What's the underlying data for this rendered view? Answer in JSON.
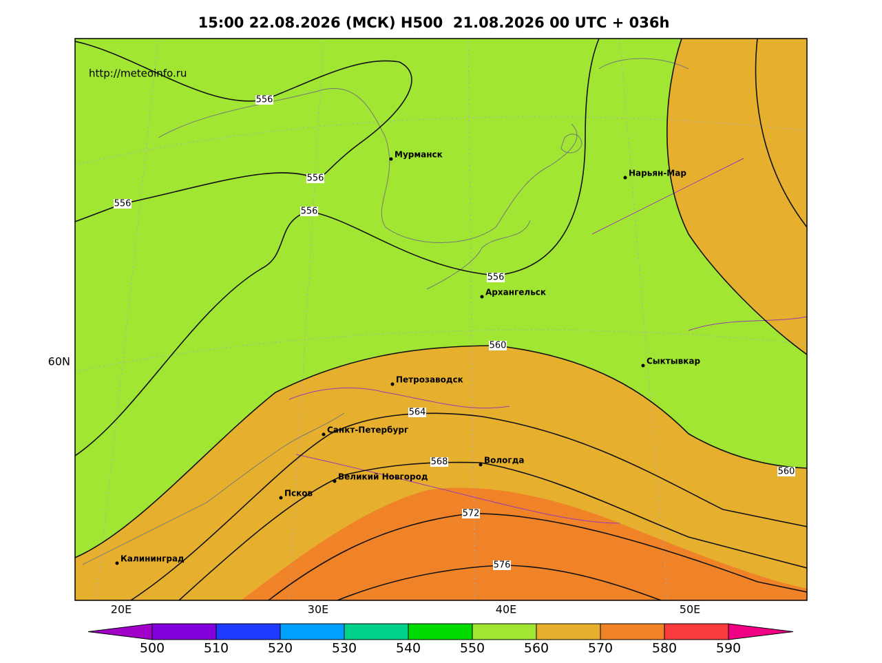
{
  "header": {
    "title": "15:00 22.08.2026 (МСК) H500  21.08.2026 00 UTC + 036h"
  },
  "map": {
    "source": "http://meteoinfo.ru",
    "cities": [
      "Мурманск",
      "Нарьян-Мар",
      "Архангельск",
      "Сыктывкар",
      "Петрозаводск",
      "Санкт-Петербург",
      "Вологда",
      "Великий Новгород",
      "Псков",
      "Калининград"
    ],
    "contour_labels": [
      556,
      556,
      556,
      556,
      556,
      560,
      560,
      564,
      568,
      572,
      576
    ],
    "lon_labels": [
      "20E",
      "30E",
      "40E",
      "50E"
    ],
    "lat_labels": [
      "60N"
    ]
  },
  "colorbar": {
    "ticks": [
      500,
      510,
      520,
      530,
      540,
      550,
      560,
      570,
      580,
      590
    ],
    "colors": [
      "#a000c8",
      "#8200dc",
      "#1e3cff",
      "#00a0ff",
      "#00d28c",
      "#00dc00",
      "#a0e632",
      "#e6af2d",
      "#f08228",
      "#fa3c3c",
      "#f00082"
    ]
  }
}
